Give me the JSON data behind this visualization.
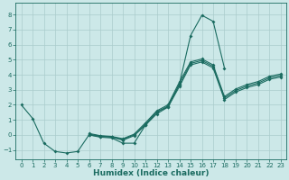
{
  "xlabel": "Humidex (Indice chaleur)",
  "bg_color": "#cce8e8",
  "line_color": "#1a6b60",
  "grid_color": "#aacccc",
  "xlim": [
    -0.5,
    23.5
  ],
  "ylim": [
    -1.6,
    8.8
  ],
  "xticks": [
    0,
    1,
    2,
    3,
    4,
    5,
    6,
    7,
    8,
    9,
    10,
    11,
    12,
    13,
    14,
    15,
    16,
    17,
    18,
    19,
    20,
    21,
    22,
    23
  ],
  "yticks": [
    -1,
    0,
    1,
    2,
    3,
    4,
    5,
    6,
    7,
    8
  ],
  "lines": [
    {
      "x": [
        0,
        1,
        2,
        3,
        4,
        5,
        6,
        7,
        8,
        9,
        10,
        11,
        12,
        13,
        14,
        15,
        16,
        17,
        18
      ],
      "y": [
        2.0,
        1.1,
        -0.55,
        -1.1,
        -1.2,
        -1.1,
        0.0,
        -0.15,
        -0.2,
        -0.55,
        -0.55,
        0.65,
        1.55,
        1.85,
        3.35,
        6.6,
        7.95,
        7.55,
        4.45
      ]
    },
    {
      "x": [
        6,
        7,
        8,
        9,
        10,
        11,
        12,
        13,
        14,
        15,
        16,
        17,
        18,
        19,
        20,
        21,
        22,
        23
      ],
      "y": [
        0.1,
        -0.05,
        -0.1,
        -0.25,
        0.05,
        0.8,
        1.6,
        2.0,
        3.5,
        4.85,
        5.05,
        4.65,
        2.55,
        3.05,
        3.35,
        3.55,
        3.9,
        4.05
      ]
    },
    {
      "x": [
        6,
        7,
        8,
        9,
        10,
        11,
        12,
        13,
        14,
        15,
        16,
        17,
        18,
        19,
        20,
        21,
        22,
        23
      ],
      "y": [
        0.0,
        -0.1,
        -0.15,
        -0.35,
        -0.05,
        0.65,
        1.4,
        1.85,
        3.2,
        4.65,
        4.85,
        4.45,
        2.35,
        2.85,
        3.15,
        3.35,
        3.7,
        3.85
      ]
    },
    {
      "x": [
        6,
        7,
        8,
        9,
        10,
        11,
        12,
        13,
        14,
        15,
        16,
        17,
        18,
        19,
        20,
        21,
        22,
        23
      ],
      "y": [
        0.05,
        -0.075,
        -0.125,
        -0.3,
        0.0,
        0.725,
        1.5,
        1.925,
        3.35,
        4.75,
        4.95,
        4.55,
        2.45,
        2.95,
        3.25,
        3.45,
        3.8,
        3.95
      ]
    }
  ]
}
